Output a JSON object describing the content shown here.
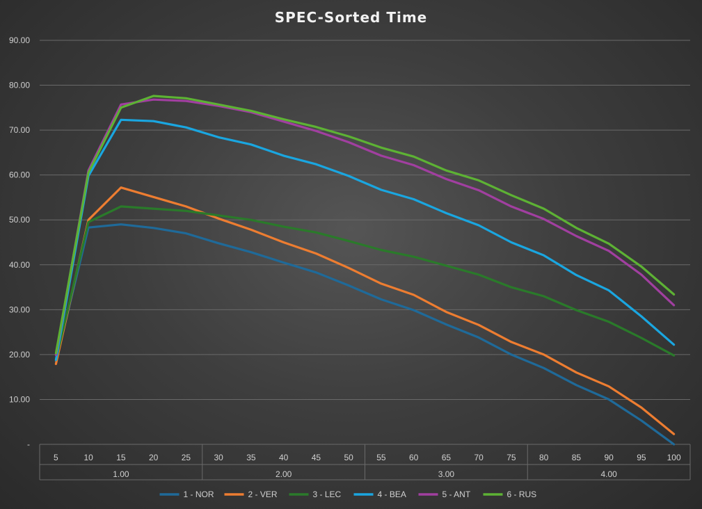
{
  "chart_data": {
    "type": "line",
    "title": "SPEC-Sorted Time",
    "xlabel": "",
    "ylabel": "",
    "ylim": [
      0,
      90
    ],
    "yticks": [
      "-",
      "10.00",
      "20.00",
      "30.00",
      "40.00",
      "50.00",
      "60.00",
      "70.00",
      "80.00",
      "90.00"
    ],
    "grid": true,
    "legend_position": "bottom",
    "x": [
      "5",
      "10",
      "15",
      "20",
      "25",
      "30",
      "35",
      "40",
      "45",
      "50",
      "55",
      "60",
      "65",
      "70",
      "75",
      "80",
      "85",
      "90",
      "95",
      "100"
    ],
    "groups": [
      {
        "label": "1.00",
        "count": 5
      },
      {
        "label": "2.00",
        "count": 5
      },
      {
        "label": "3.00",
        "count": 5
      },
      {
        "label": "4.00",
        "count": 5
      }
    ],
    "series": [
      {
        "name": "1 - NOR",
        "color": "#1f6a99",
        "values": [
          18.5,
          48.3,
          49.0,
          48.2,
          47.0,
          44.8,
          42.8,
          40.5,
          38.3,
          35.4,
          32.3,
          29.9,
          26.7,
          23.8,
          20.0,
          17.0,
          13.2,
          10.0,
          5.3,
          0.0
        ]
      },
      {
        "name": "2 - VER",
        "color": "#ed7d31",
        "values": [
          17.9,
          50.0,
          57.2,
          55.1,
          53.0,
          50.3,
          47.8,
          45.0,
          42.5,
          39.3,
          35.8,
          33.3,
          29.5,
          26.6,
          22.8,
          20.0,
          16.0,
          12.9,
          8.2,
          2.3
        ]
      },
      {
        "name": "3 - LEC",
        "color": "#2a7a2a",
        "values": [
          18.8,
          49.5,
          53.0,
          52.5,
          52.0,
          51.0,
          50.0,
          48.5,
          47.2,
          45.3,
          43.3,
          41.8,
          39.8,
          37.8,
          35.0,
          33.0,
          29.9,
          27.3,
          23.7,
          19.8
        ]
      },
      {
        "name": "4 - BEA",
        "color": "#1aa6e0",
        "values": [
          18.8,
          59.8,
          72.3,
          72.0,
          70.6,
          68.4,
          66.8,
          64.3,
          62.4,
          59.8,
          56.7,
          54.6,
          51.5,
          48.8,
          45.0,
          42.1,
          37.7,
          34.3,
          28.5,
          22.2
        ]
      },
      {
        "name": "5 - ANT",
        "color": "#a13fa0",
        "values": [
          19.9,
          61.0,
          75.7,
          76.8,
          76.5,
          75.4,
          74.0,
          71.9,
          69.8,
          67.3,
          64.3,
          62.2,
          59.1,
          56.6,
          53.0,
          50.2,
          46.4,
          43.1,
          37.8,
          31.0
        ]
      },
      {
        "name": "6 - RUS",
        "color": "#5db234",
        "values": [
          20.3,
          60.5,
          75.0,
          77.6,
          77.1,
          75.7,
          74.3,
          72.4,
          70.7,
          68.6,
          66.1,
          64.1,
          61.0,
          58.8,
          55.5,
          52.5,
          48.2,
          44.7,
          39.6,
          33.4
        ]
      }
    ]
  }
}
